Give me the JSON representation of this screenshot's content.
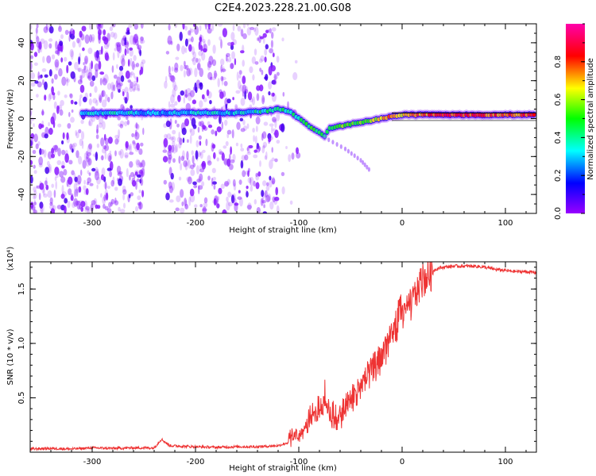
{
  "figure_title": "C2E4.2023.228.21.00.G08",
  "chart_data": [
    {
      "type": "heatmap",
      "xlabel": "Height of straight line (km)",
      "ylabel": "Frequency (Hz)",
      "xlim": [
        -360,
        130
      ],
      "ylim": [
        -50,
        50
      ],
      "x_ticks": [
        -300,
        -200,
        -100,
        0,
        100
      ],
      "y_ticks": [
        -40,
        -20,
        0,
        20,
        40
      ],
      "grid": false,
      "colorbar": {
        "label": "Normalized spectral amplitude",
        "range": [
          0,
          1
        ],
        "ticks": [
          0.0,
          0.2,
          0.4,
          0.6,
          0.8
        ],
        "colormap": [
          "#9900ff",
          "#0000ff",
          "#00ffff",
          "#00ff00",
          "#ffff00",
          "#ff0000",
          "#ff00aa"
        ]
      },
      "carrier_track": {
        "x": [
          -310,
          -280,
          -250,
          -220,
          -190,
          -160,
          -130,
          -120,
          -110,
          -100,
          -90,
          -80,
          -75,
          -70,
          -60,
          -50,
          -40,
          -30,
          -20,
          -10,
          0,
          20,
          40,
          60,
          80,
          100,
          130
        ],
        "y": [
          3,
          3,
          3,
          3,
          3,
          3,
          4,
          5,
          4,
          0,
          -4,
          -7,
          -9,
          -5,
          -4,
          -3,
          -2,
          -1,
          0,
          1,
          2,
          2,
          2,
          2,
          2,
          2,
          2
        ],
        "amplitude": [
          0.3,
          0.35,
          0.3,
          0.3,
          0.35,
          0.3,
          0.4,
          0.45,
          0.4,
          0.4,
          0.45,
          0.5,
          0.45,
          0.5,
          0.55,
          0.5,
          0.55,
          0.6,
          0.7,
          0.75,
          0.7,
          0.75,
          0.8,
          0.8,
          0.8,
          0.75,
          0.8
        ]
      },
      "noise_regions": [
        {
          "x_range": [
            -360,
            -250
          ],
          "density": 1.0
        },
        {
          "x_range": [
            -230,
            -120
          ],
          "density": 0.85
        },
        {
          "x_range": [
            -120,
            -100
          ],
          "density": 0.15
        }
      ],
      "branch": {
        "x": [
          -75,
          -55,
          -40,
          -30
        ],
        "y": [
          -10,
          -16,
          -22,
          -28
        ]
      }
    },
    {
      "type": "line",
      "xlabel": "Height of straight line (km)",
      "ylabel": "SNR (10 * v/v)",
      "y_multiplier": "(x10⁴)",
      "xlim": [
        -360,
        130
      ],
      "ylim": [
        0,
        1.75
      ],
      "x_ticks": [
        -300,
        -200,
        -100,
        0,
        100
      ],
      "y_ticks": [
        0.5,
        1.0,
        1.5
      ],
      "y_tick_labels": [
        "0.5",
        "1.0",
        "1.5"
      ],
      "grid": false,
      "series_color": "#ee3333",
      "x": [
        -360,
        -340,
        -320,
        -300,
        -280,
        -260,
        -240,
        -233,
        -225,
        -200,
        -180,
        -160,
        -140,
        -120,
        -110,
        -105,
        -100,
        -95,
        -90,
        -85,
        -80,
        -75,
        -70,
        -65,
        -60,
        -55,
        -50,
        -45,
        -40,
        -35,
        -30,
        -25,
        -20,
        -15,
        -10,
        -5,
        0,
        5,
        10,
        15,
        20,
        25,
        30,
        35,
        40,
        50,
        60,
        70,
        80,
        90,
        100,
        110,
        120,
        130
      ],
      "y": [
        0.03,
        0.035,
        0.03,
        0.04,
        0.035,
        0.04,
        0.04,
        0.12,
        0.06,
        0.05,
        0.045,
        0.05,
        0.05,
        0.06,
        0.09,
        0.12,
        0.15,
        0.2,
        0.25,
        0.32,
        0.38,
        0.45,
        0.35,
        0.25,
        0.3,
        0.38,
        0.45,
        0.5,
        0.58,
        0.65,
        0.72,
        0.78,
        0.85,
        0.95,
        1.05,
        1.15,
        1.25,
        1.3,
        1.38,
        1.5,
        1.58,
        1.63,
        1.67,
        1.69,
        1.7,
        1.71,
        1.71,
        1.71,
        1.7,
        1.68,
        1.67,
        1.66,
        1.66,
        1.65
      ],
      "spike_x": [
        -95,
        -90,
        -80,
        -75,
        -70,
        -60,
        -50,
        -40,
        -30,
        -20,
        -10,
        -5,
        0,
        5,
        10,
        15
      ],
      "spike_y": [
        0.22,
        0.42,
        0.55,
        0.68,
        0.5,
        0.45,
        0.62,
        0.75,
        0.88,
        1.02,
        1.2,
        1.35,
        1.55,
        1.3,
        1.48,
        1.6
      ]
    }
  ]
}
